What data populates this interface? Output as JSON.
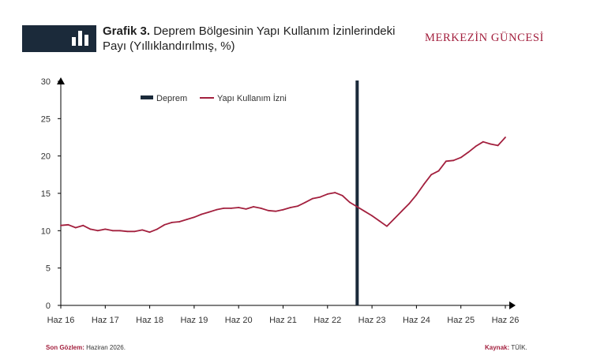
{
  "header": {
    "figure_label": "Grafik 3.",
    "title": "Deprem Bölgesinin Yapı Kullanım İzinlerindeki Payı (Yıllıklandırılmış, %)",
    "brand": "MERKEZİN GÜNCESİ",
    "badge_icon": "bar-chart-icon"
  },
  "footer": {
    "last_obs_label": "Son Gözlem:",
    "last_obs_value": " Haziran 2026.",
    "source_label": "Kaynak:",
    "source_value": " TÜİK."
  },
  "colors": {
    "series": "#a3203e",
    "event": "#1b2a3a",
    "axis": "#000000"
  },
  "chart_data": {
    "type": "line",
    "title": "",
    "xlabel": "",
    "ylabel": "",
    "x_ticks": [
      "Haz 16",
      "Haz 17",
      "Haz 18",
      "Haz 19",
      "Haz 20",
      "Haz 21",
      "Haz 22",
      "Haz 23",
      "Haz 24",
      "Haz 25",
      "Haz 26"
    ],
    "ylim": [
      0,
      30
    ],
    "y_ticks": [
      0,
      5,
      10,
      15,
      20,
      25,
      30
    ],
    "grid": false,
    "legend_position": "top-center",
    "event_line": {
      "name": "Deprem",
      "x": "2023-02"
    },
    "series": [
      {
        "name": "Yapı Kullanım İzni",
        "x": [
          "2016-06",
          "2016-08",
          "2016-10",
          "2016-12",
          "2017-02",
          "2017-04",
          "2017-06",
          "2017-08",
          "2017-10",
          "2017-12",
          "2018-02",
          "2018-04",
          "2018-06",
          "2018-08",
          "2018-10",
          "2018-12",
          "2019-02",
          "2019-04",
          "2019-06",
          "2019-08",
          "2019-10",
          "2019-12",
          "2020-02",
          "2020-04",
          "2020-06",
          "2020-08",
          "2020-10",
          "2020-12",
          "2021-02",
          "2021-04",
          "2021-06",
          "2021-08",
          "2021-10",
          "2021-12",
          "2022-02",
          "2022-04",
          "2022-06",
          "2022-08",
          "2022-10",
          "2022-12",
          "2023-02",
          "2023-04",
          "2023-06",
          "2023-08",
          "2023-10",
          "2023-12",
          "2024-02",
          "2024-04",
          "2024-06",
          "2024-08",
          "2024-10",
          "2024-12",
          "2025-02",
          "2025-04",
          "2025-06",
          "2025-08",
          "2025-10",
          "2025-12",
          "2026-02",
          "2026-04",
          "2026-06"
        ],
        "values": [
          10.7,
          10.8,
          10.4,
          10.7,
          10.2,
          10.0,
          10.2,
          10.0,
          10.0,
          9.9,
          9.9,
          10.1,
          9.8,
          10.2,
          10.8,
          11.1,
          11.2,
          11.5,
          11.8,
          12.2,
          12.5,
          12.8,
          13.0,
          13.0,
          13.1,
          12.9,
          13.2,
          13.0,
          12.7,
          12.6,
          12.8,
          13.1,
          13.3,
          13.8,
          14.3,
          14.5,
          14.9,
          15.1,
          14.7,
          13.8,
          13.2,
          12.6,
          12.0,
          11.3,
          10.6,
          11.6,
          12.6,
          13.6,
          14.8,
          16.2,
          17.5,
          18.0,
          19.3,
          19.4,
          19.8,
          20.5,
          21.3,
          21.9,
          21.6,
          21.4,
          22.5
        ]
      }
    ]
  }
}
